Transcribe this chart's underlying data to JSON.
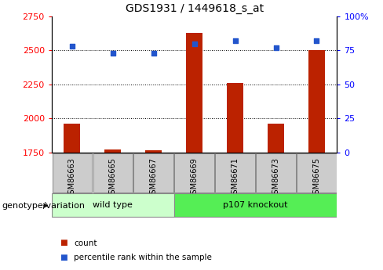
{
  "title": "GDS1931 / 1449618_s_at",
  "samples": [
    "GSM86663",
    "GSM86665",
    "GSM86667",
    "GSM86669",
    "GSM86671",
    "GSM86673",
    "GSM86675"
  ],
  "count_values": [
    1960,
    1770,
    1765,
    2630,
    2260,
    1960,
    2500
  ],
  "percentile_values": [
    78,
    73,
    73,
    80,
    82,
    77,
    82
  ],
  "ylim_left": [
    1750,
    2750
  ],
  "ylim_right": [
    0,
    100
  ],
  "yticks_left": [
    1750,
    2000,
    2250,
    2500,
    2750
  ],
  "ytick_labels_left": [
    "1750",
    "2000",
    "2250",
    "2500",
    "2750"
  ],
  "yticks_right": [
    0,
    25,
    50,
    75,
    100
  ],
  "ytick_labels_right": [
    "0",
    "25",
    "50",
    "75",
    "100%"
  ],
  "bar_color": "#bb2200",
  "dot_color": "#2255cc",
  "bar_width": 0.4,
  "groups": [
    {
      "label": "wild type",
      "start": 0,
      "end": 3,
      "color": "#ccffcc"
    },
    {
      "label": "p107 knockout",
      "start": 3,
      "end": 7,
      "color": "#55ee55"
    }
  ],
  "group_label": "genotype/variation",
  "legend_items": [
    {
      "label": "count",
      "color": "#bb2200"
    },
    {
      "label": "percentile rank within the sample",
      "color": "#2255cc"
    }
  ],
  "title_fontsize": 10,
  "tick_fontsize": 8,
  "label_fontsize": 8,
  "sample_fontsize": 7,
  "group_fontsize": 8,
  "legend_fontsize": 7.5
}
